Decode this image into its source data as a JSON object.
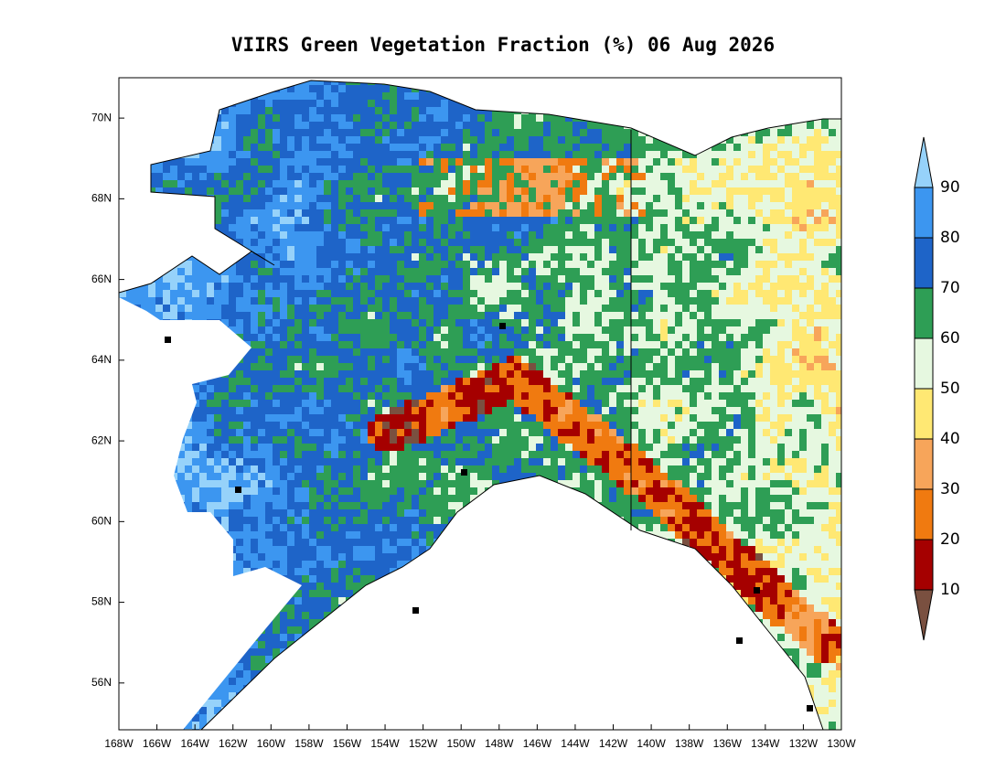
{
  "title": "VIIRS Green Vegetation Fraction (%) 06 Aug 2026",
  "map": {
    "lat_range": [
      54.84,
      71.0
    ],
    "lon_range": [
      -168,
      -130
    ],
    "lat_ticks": [
      {
        "value": 70,
        "label": "70N"
      },
      {
        "value": 68,
        "label": "68N"
      },
      {
        "value": 66,
        "label": "66N"
      },
      {
        "value": 64,
        "label": "64N"
      },
      {
        "value": 62,
        "label": "62N"
      },
      {
        "value": 60,
        "label": "60N"
      },
      {
        "value": 58,
        "label": "58N"
      },
      {
        "value": 56,
        "label": "56N"
      }
    ],
    "lon_ticks": [
      {
        "value": -168,
        "label": "168W"
      },
      {
        "value": -166,
        "label": "166W"
      },
      {
        "value": -164,
        "label": "164W"
      },
      {
        "value": -162,
        "label": "162W"
      },
      {
        "value": -160,
        "label": "160W"
      },
      {
        "value": -158,
        "label": "158W"
      },
      {
        "value": -156,
        "label": "156W"
      },
      {
        "value": -154,
        "label": "154W"
      },
      {
        "value": -152,
        "label": "152W"
      },
      {
        "value": -150,
        "label": "150W"
      },
      {
        "value": -148,
        "label": "148W"
      },
      {
        "value": -146,
        "label": "146W"
      },
      {
        "value": -144,
        "label": "144W"
      },
      {
        "value": -142,
        "label": "142W"
      },
      {
        "value": -140,
        "label": "140W"
      },
      {
        "value": -138,
        "label": "138W"
      },
      {
        "value": -136,
        "label": "136W"
      },
      {
        "value": -134,
        "label": "134W"
      },
      {
        "value": -132,
        "label": "132W"
      },
      {
        "value": -130,
        "label": "130W"
      }
    ]
  },
  "colorbar": {
    "levels": [
      10,
      20,
      30,
      40,
      50,
      60,
      70,
      80,
      90
    ],
    "colors": [
      "#7a5040",
      "#a50000",
      "#f07a10",
      "#f7a55a",
      "#ffe873",
      "#e6f8e0",
      "#2e9e55",
      "#1e64c8",
      "#3c96f0",
      "#96d2fa"
    ]
  }
}
